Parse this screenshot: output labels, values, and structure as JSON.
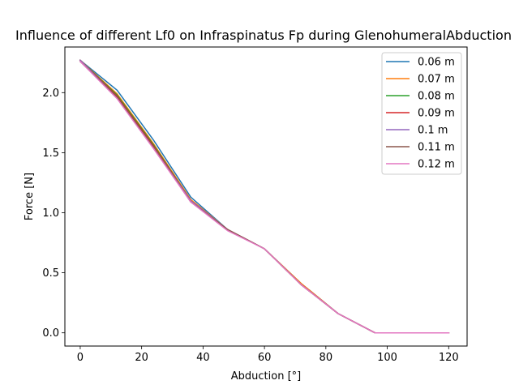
{
  "chart_data": {
    "type": "line",
    "title": "Influence of different Lf0 on Infraspinatus Fp during GlenohumeralAbduction",
    "xlabel": "Abduction [°]",
    "ylabel": "Force [N]",
    "xlim": [
      -5,
      126
    ],
    "ylim": [
      -0.11,
      2.38
    ],
    "xticks": [
      0,
      20,
      40,
      60,
      80,
      100,
      120
    ],
    "yticks": [
      0.0,
      0.5,
      1.0,
      1.5,
      2.0
    ],
    "xtick_labels": [
      "0",
      "20",
      "40",
      "60",
      "80",
      "100",
      "120"
    ],
    "ytick_labels": [
      "0.0",
      "0.5",
      "1.0",
      "1.5",
      "2.0"
    ],
    "grid": false,
    "legend_position": "top-right",
    "x": [
      0,
      12,
      24,
      36,
      48,
      60,
      72,
      84,
      96,
      108,
      120
    ],
    "series": [
      {
        "name": "0.06 m",
        "color": "#1f77b4",
        "values": [
          2.27,
          2.02,
          1.6,
          1.13,
          0.86,
          0.7,
          0.41,
          0.16,
          0.0,
          0.0,
          0.0
        ]
      },
      {
        "name": "0.07 m",
        "color": "#ff7f0e",
        "values": [
          2.27,
          1.99,
          1.57,
          1.11,
          0.86,
          0.7,
          0.41,
          0.16,
          0.0,
          0.0,
          0.0
        ]
      },
      {
        "name": "0.08 m",
        "color": "#2ca02c",
        "values": [
          2.27,
          1.98,
          1.56,
          1.1,
          0.86,
          0.7,
          0.4,
          0.16,
          0.0,
          0.0,
          0.0
        ]
      },
      {
        "name": "0.09 m",
        "color": "#d62728",
        "values": [
          2.27,
          1.97,
          1.55,
          1.1,
          0.86,
          0.7,
          0.4,
          0.16,
          0.0,
          0.0,
          0.0
        ]
      },
      {
        "name": "0.1 m",
        "color": "#9467bd",
        "values": [
          2.27,
          1.96,
          1.54,
          1.1,
          0.86,
          0.7,
          0.4,
          0.16,
          0.0,
          0.0,
          0.0
        ]
      },
      {
        "name": "0.11 m",
        "color": "#8c564b",
        "values": [
          2.26,
          1.96,
          1.54,
          1.09,
          0.86,
          0.7,
          0.4,
          0.16,
          0.0,
          0.0,
          0.0
        ]
      },
      {
        "name": "0.12 m",
        "color": "#e377c2",
        "values": [
          2.26,
          1.95,
          1.53,
          1.09,
          0.85,
          0.7,
          0.4,
          0.16,
          0.0,
          0.0,
          0.0
        ]
      }
    ]
  }
}
